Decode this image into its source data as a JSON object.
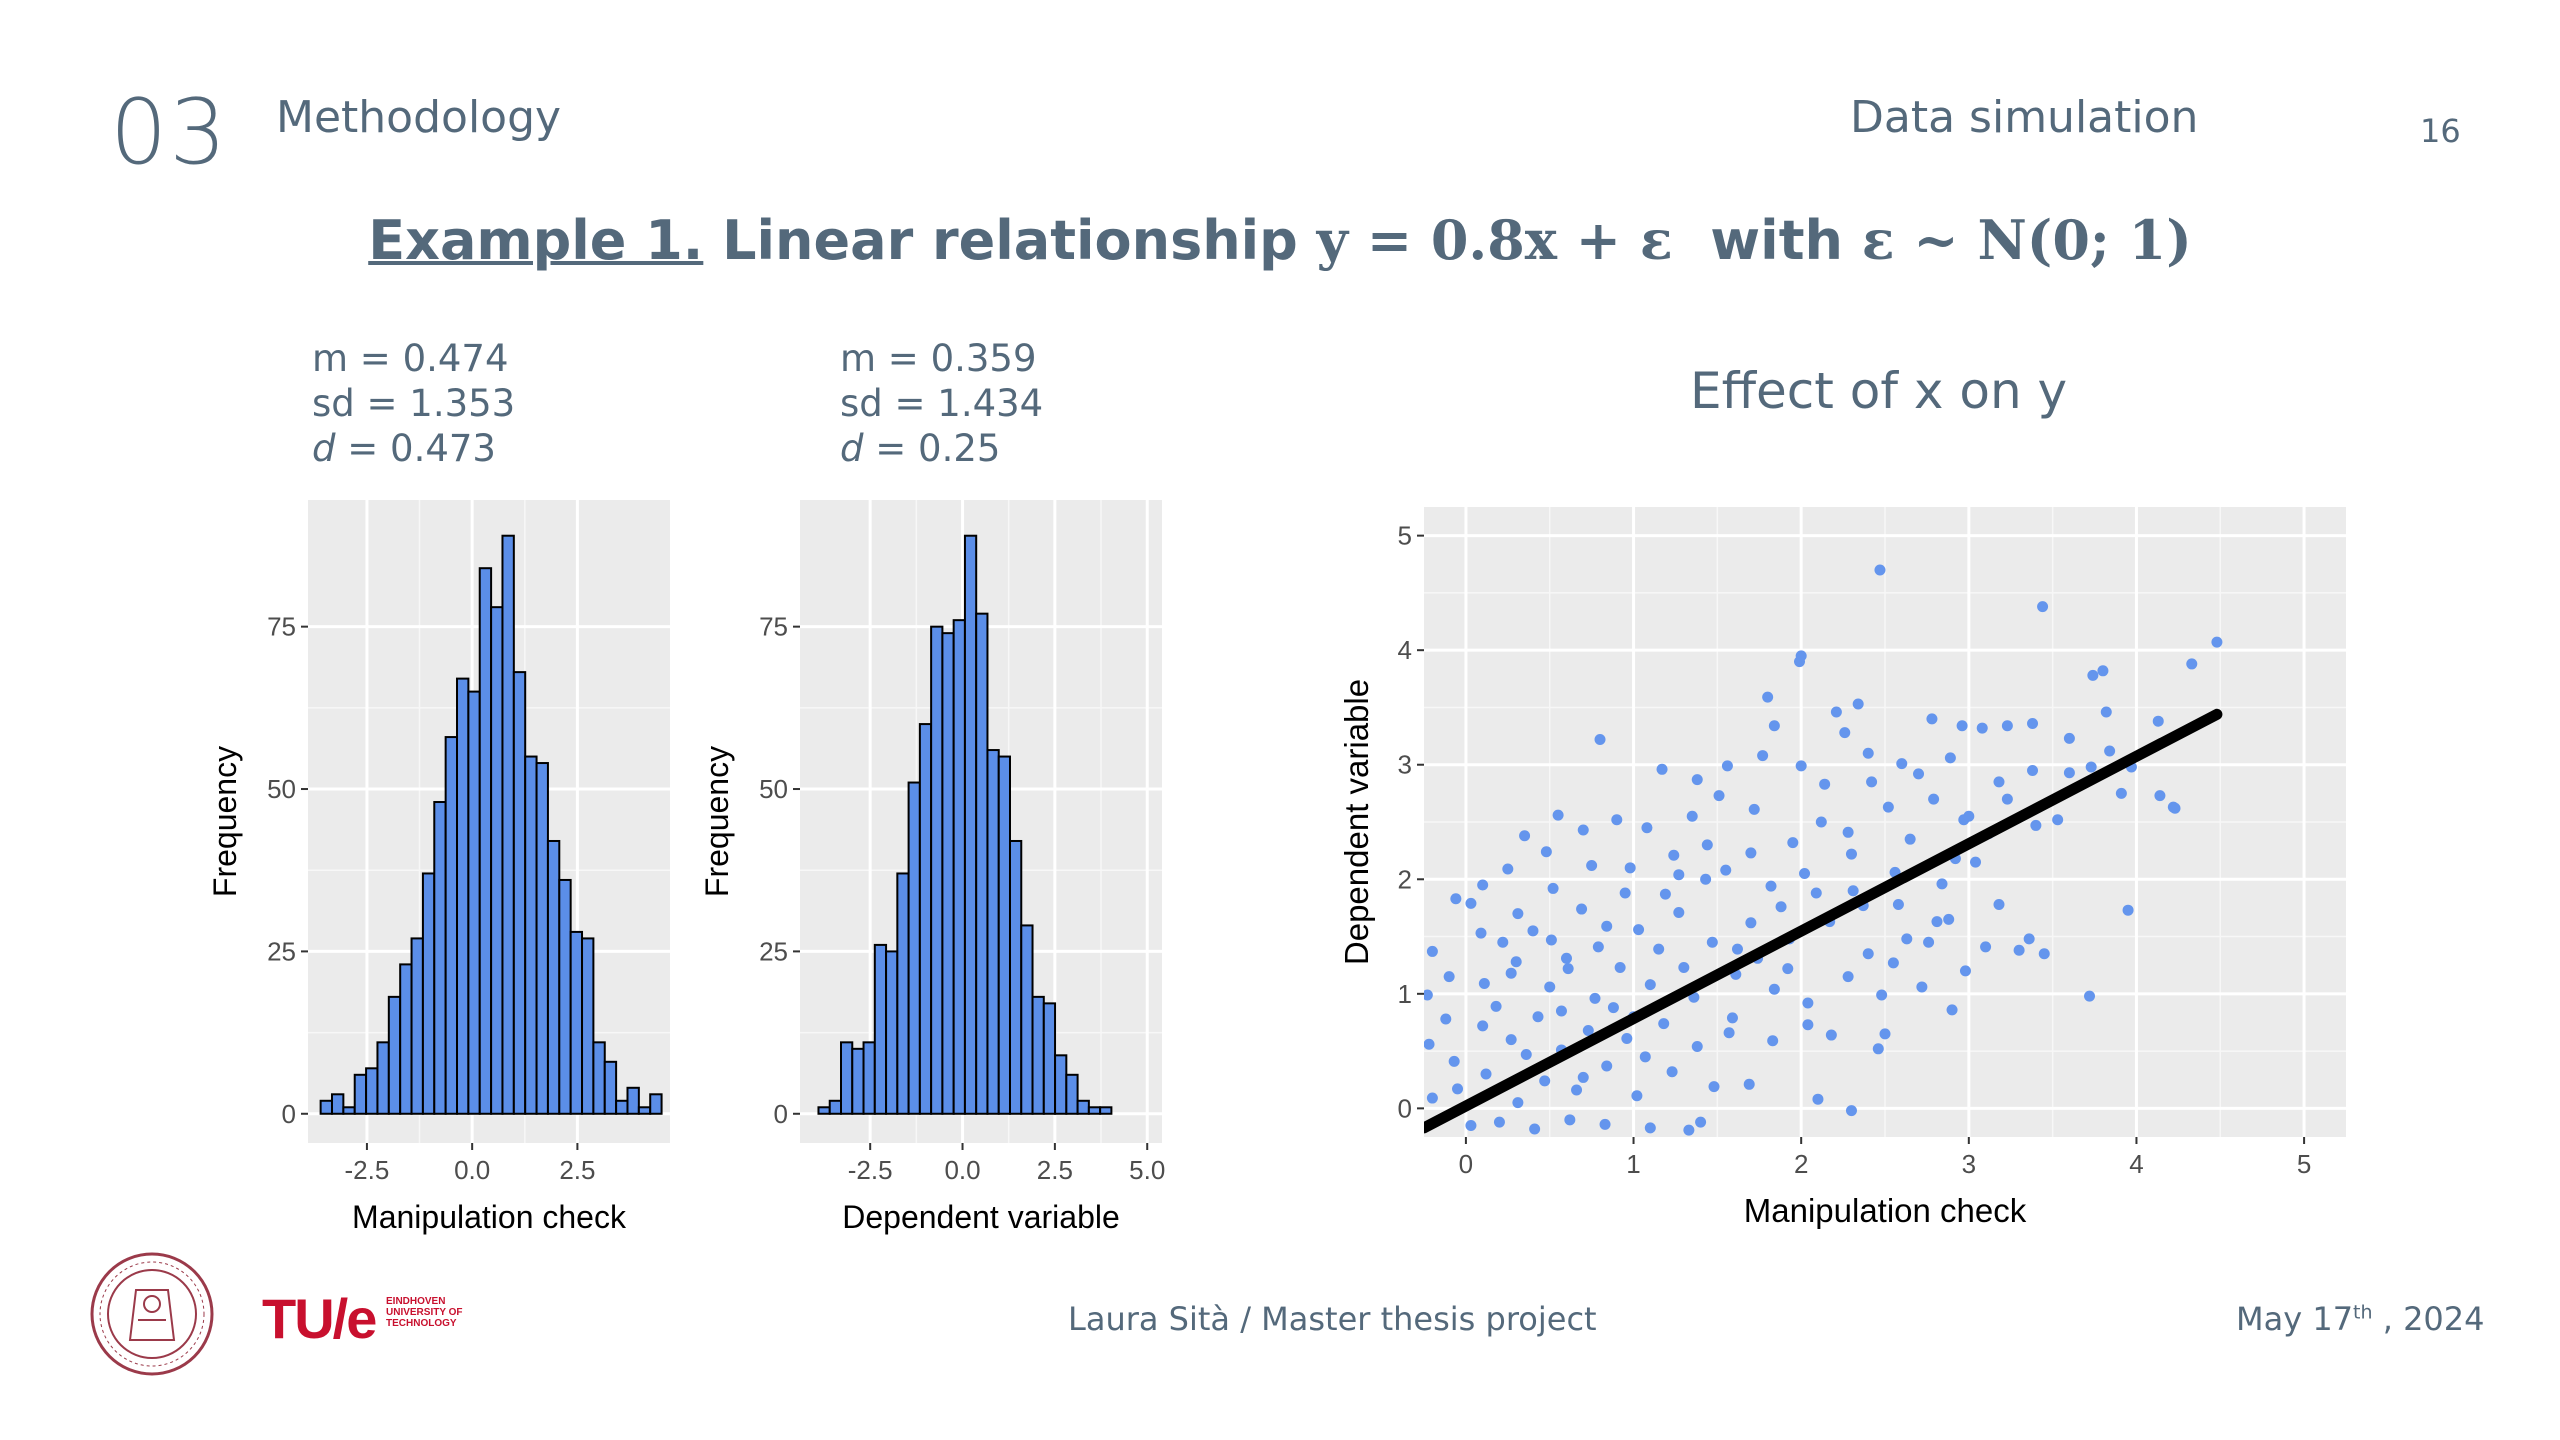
{
  "header": {
    "section_number": "03",
    "section_label": "Methodology",
    "subsection_label": "Data simulation",
    "page_number": "16"
  },
  "slide_title": {
    "example_label": "Example 1.",
    "title_text": "Linear relationship",
    "formula_1": "y = 0.8x + ε",
    "with_text": "with",
    "formula_2": "ε ~ N(0; 1)"
  },
  "stats_left": {
    "m": "m = 0.474",
    "sd": "sd = 1.353",
    "d_label": "d",
    "d_value": " = 0.473"
  },
  "stats_mid": {
    "m": "m =  0.359",
    "sd": "sd =  1.434",
    "d_label": "d",
    "d_value": " = 0.25"
  },
  "scatter_title": "Effect of x on y",
  "footer": {
    "author_project": "Laura Sità / Master thesis project",
    "date_main": "May 17",
    "date_sup": "th",
    "date_year": " , 2024",
    "tue_word": "TU/e",
    "tue_sub": [
      "EINDHOVEN",
      "UNIVERSITY OF",
      "TECHNOLOGY"
    ]
  },
  "colors": {
    "bar_fill": "#5b8ee8",
    "point_fill": "#6495ed",
    "panel_bg": "#ebebeb",
    "text": "#54697b",
    "logo_red": "#c8102e"
  },
  "chart_data": [
    {
      "type": "bar",
      "title": "",
      "xlabel": "Manipulation check",
      "ylabel": "Frequency",
      "xlim": [
        -3.9,
        4.7
      ],
      "ylim": [
        -4.5,
        94.5
      ],
      "x_ticks": [
        -2.5,
        0.0,
        2.5
      ],
      "x_tick_labels": [
        "-2.5",
        "0.0",
        "2.5"
      ],
      "y_ticks": [
        0,
        25,
        50,
        75
      ],
      "y_tick_labels": [
        "0",
        "25",
        "50",
        "75"
      ],
      "bin_start": -3.6,
      "bin_width": 0.27,
      "values": [
        2,
        3,
        1,
        6,
        7,
        11,
        18,
        23,
        27,
        37,
        48,
        58,
        67,
        65,
        84,
        78,
        89,
        68,
        55,
        54,
        42,
        36,
        28,
        27,
        11,
        8,
        2,
        4,
        1,
        3
      ],
      "grid": true
    },
    {
      "type": "bar",
      "title": "",
      "xlabel": "Dependent variable",
      "ylabel": "Frequency",
      "xlim": [
        -4.4,
        5.4
      ],
      "ylim": [
        -4.5,
        94.5
      ],
      "x_ticks": [
        -2.5,
        0.0,
        2.5,
        5.0
      ],
      "x_tick_labels": [
        "-2.5",
        "0.0",
        "2.5",
        "5.0"
      ],
      "y_ticks": [
        0,
        25,
        50,
        75
      ],
      "y_tick_labels": [
        "0",
        "25",
        "50",
        "75"
      ],
      "bin_start": -3.9,
      "bin_width": 0.305,
      "values": [
        1,
        2,
        11,
        10,
        11,
        26,
        25,
        37,
        51,
        60,
        75,
        74,
        76,
        89,
        77,
        56,
        55,
        42,
        29,
        18,
        17,
        9,
        6,
        2,
        1,
        1
      ],
      "grid": true
    },
    {
      "type": "scatter",
      "title": "Effect of x on y",
      "xlabel": "Manipulation check",
      "ylabel": "Dependent variable",
      "xlim": [
        -0.25,
        5.25
      ],
      "ylim": [
        -0.25,
        5.25
      ],
      "x_ticks": [
        0,
        1,
        2,
        3,
        4,
        5
      ],
      "x_tick_labels": [
        "0",
        "1",
        "2",
        "3",
        "4",
        "5"
      ],
      "y_ticks": [
        0,
        1,
        2,
        3,
        4,
        5
      ],
      "y_tick_labels": [
        "0",
        "1",
        "2",
        "3",
        "4",
        "5"
      ],
      "regression_line": {
        "x": [
          -0.25,
          4.48
        ],
        "y": [
          -0.17,
          3.44
        ]
      },
      "points": [
        [
          2.47,
          4.7
        ],
        [
          3.44,
          4.38
        ],
        [
          4.48,
          4.07
        ],
        [
          4.33,
          3.88
        ],
        [
          2.0,
          3.95
        ],
        [
          1.99,
          3.9
        ],
        [
          3.8,
          3.82
        ],
        [
          3.74,
          3.78
        ],
        [
          1.8,
          3.59
        ],
        [
          2.34,
          3.53
        ],
        [
          3.23,
          3.34
        ],
        [
          3.38,
          3.36
        ],
        [
          3.82,
          3.46
        ],
        [
          4.13,
          3.38
        ],
        [
          0.8,
          3.22
        ],
        [
          2.78,
          3.4
        ],
        [
          2.96,
          3.34
        ],
        [
          2.21,
          3.46
        ],
        [
          2.26,
          3.28
        ],
        [
          1.84,
          3.34
        ],
        [
          2.4,
          3.1
        ],
        [
          3.08,
          3.32
        ],
        [
          3.6,
          3.23
        ],
        [
          3.84,
          3.12
        ],
        [
          3.73,
          2.98
        ],
        [
          3.91,
          2.75
        ],
        [
          4.22,
          2.63
        ],
        [
          3.38,
          2.95
        ],
        [
          2.89,
          3.06
        ],
        [
          1.17,
          2.96
        ],
        [
          1.38,
          2.87
        ],
        [
          1.56,
          2.99
        ],
        [
          1.77,
          3.08
        ],
        [
          2.0,
          2.99
        ],
        [
          2.6,
          3.01
        ],
        [
          3.18,
          2.85
        ],
        [
          2.7,
          2.92
        ],
        [
          0.55,
          2.56
        ],
        [
          0.7,
          2.43
        ],
        [
          0.9,
          2.52
        ],
        [
          1.08,
          2.45
        ],
        [
          1.35,
          2.55
        ],
        [
          1.44,
          2.3
        ],
        [
          1.7,
          2.23
        ],
        [
          2.12,
          2.5
        ],
        [
          2.28,
          2.41
        ],
        [
          2.52,
          2.63
        ],
        [
          2.79,
          2.7
        ],
        [
          2.97,
          2.52
        ],
        [
          3.12,
          2.4
        ],
        [
          3.4,
          2.47
        ],
        [
          -0.06,
          1.83
        ],
        [
          0.03,
          1.79
        ],
        [
          0.25,
          2.09
        ],
        [
          0.48,
          2.24
        ],
        [
          0.75,
          2.12
        ],
        [
          0.98,
          2.1
        ],
        [
          1.27,
          2.04
        ],
        [
          1.55,
          2.08
        ],
        [
          1.82,
          1.94
        ],
        [
          2.02,
          2.05
        ],
        [
          2.3,
          2.22
        ],
        [
          2.56,
          2.06
        ],
        [
          2.84,
          1.96
        ],
        [
          3.04,
          2.15
        ],
        [
          -0.2,
          1.37
        ],
        [
          0.09,
          1.53
        ],
        [
          0.31,
          1.7
        ],
        [
          0.51,
          1.47
        ],
        [
          0.69,
          1.74
        ],
        [
          0.84,
          1.59
        ],
        [
          1.03,
          1.56
        ],
        [
          1.27,
          1.71
        ],
        [
          1.47,
          1.45
        ],
        [
          1.7,
          1.62
        ],
        [
          1.93,
          1.48
        ],
        [
          2.17,
          1.63
        ],
        [
          2.4,
          1.35
        ],
        [
          2.63,
          1.48
        ],
        [
          2.88,
          1.65
        ],
        [
          3.1,
          1.41
        ],
        [
          3.3,
          1.38
        ],
        [
          3.45,
          1.35
        ],
        [
          3.95,
          1.73
        ],
        [
          -0.23,
          0.99
        ],
        [
          -0.1,
          1.15
        ],
        [
          0.11,
          1.09
        ],
        [
          0.3,
          1.28
        ],
        [
          0.5,
          1.06
        ],
        [
          0.61,
          1.22
        ],
        [
          0.77,
          0.96
        ],
        [
          0.92,
          1.23
        ],
        [
          1.1,
          1.08
        ],
        [
          1.36,
          0.97
        ],
        [
          1.61,
          1.17
        ],
        [
          1.84,
          1.04
        ],
        [
          2.04,
          0.92
        ],
        [
          2.28,
          1.15
        ],
        [
          2.48,
          0.99
        ],
        [
          2.72,
          1.06
        ],
        [
          2.9,
          0.86
        ],
        [
          3.72,
          0.98
        ],
        [
          -0.22,
          0.56
        ],
        [
          -0.07,
          0.41
        ],
        [
          0.1,
          0.72
        ],
        [
          0.27,
          0.6
        ],
        [
          0.43,
          0.8
        ],
        [
          0.57,
          0.51
        ],
        [
          0.73,
          0.68
        ],
        [
          0.96,
          0.61
        ],
        [
          1.18,
          0.74
        ],
        [
          1.38,
          0.54
        ],
        [
          1.59,
          0.79
        ],
        [
          1.83,
          0.59
        ],
        [
          2.04,
          0.73
        ],
        [
          2.46,
          0.52
        ],
        [
          2.5,
          0.65
        ],
        [
          -0.2,
          0.09
        ],
        [
          -0.05,
          0.17
        ],
        [
          0.12,
          0.3
        ],
        [
          0.31,
          0.05
        ],
        [
          0.47,
          0.24
        ],
        [
          0.66,
          0.16
        ],
        [
          0.84,
          0.37
        ],
        [
          1.02,
          0.11
        ],
        [
          1.23,
          0.32
        ],
        [
          1.48,
          0.19
        ],
        [
          1.69,
          0.21
        ],
        [
          2.1,
          0.08
        ],
        [
          2.3,
          -0.02
        ],
        [
          0.03,
          -0.15
        ],
        [
          0.2,
          -0.12
        ],
        [
          0.41,
          -0.18
        ],
        [
          0.62,
          -0.1
        ],
        [
          0.83,
          -0.14
        ],
        [
          1.1,
          -0.17
        ],
        [
          1.33,
          -0.19
        ],
        [
          1.4,
          -0.12
        ],
        [
          0.35,
          2.38
        ],
        [
          0.22,
          1.45
        ],
        [
          0.52,
          1.92
        ],
        [
          0.36,
          0.47
        ],
        [
          0.18,
          0.89
        ],
        [
          0.6,
          1.31
        ],
        [
          0.95,
          1.88
        ],
        [
          1.15,
          1.39
        ],
        [
          1.24,
          2.21
        ],
        [
          1.51,
          2.73
        ],
        [
          1.72,
          2.61
        ],
        [
          1.95,
          2.32
        ],
        [
          2.14,
          2.83
        ],
        [
          2.42,
          2.85
        ],
        [
          2.65,
          2.35
        ],
        [
          2.92,
          2.18
        ],
        [
          3.23,
          2.7
        ],
        [
          3.53,
          2.52
        ],
        [
          3.6,
          2.93
        ],
        [
          3.97,
          2.98
        ],
        [
          4.23,
          2.62
        ],
        [
          4.14,
          2.73
        ],
        [
          0.1,
          1.95
        ],
        [
          -0.12,
          0.78
        ],
        [
          0.4,
          1.55
        ],
        [
          0.7,
          0.27
        ],
        [
          0.88,
          0.88
        ],
        [
          1.07,
          0.45
        ],
        [
          1.3,
          1.23
        ],
        [
          1.57,
          0.66
        ],
        [
          1.74,
          1.31
        ],
        [
          1.92,
          1.22
        ],
        [
          2.18,
          0.64
        ],
        [
          2.37,
          1.77
        ],
        [
          2.58,
          1.78
        ],
        [
          2.76,
          1.45
        ],
        [
          2.98,
          1.2
        ],
        [
          3.18,
          1.78
        ],
        [
          3.36,
          1.48
        ],
        [
          0.27,
          1.18
        ],
        [
          0.57,
          0.85
        ],
        [
          0.79,
          1.41
        ],
        [
          1.0,
          0.8
        ],
        [
          1.19,
          1.87
        ],
        [
          1.43,
          2.0
        ],
        [
          1.62,
          1.39
        ],
        [
          1.88,
          1.76
        ],
        [
          2.09,
          1.88
        ],
        [
          2.31,
          1.9
        ],
        [
          2.55,
          1.27
        ],
        [
          2.81,
          1.63
        ],
        [
          3.0,
          2.55
        ]
      ],
      "grid": true
    }
  ]
}
